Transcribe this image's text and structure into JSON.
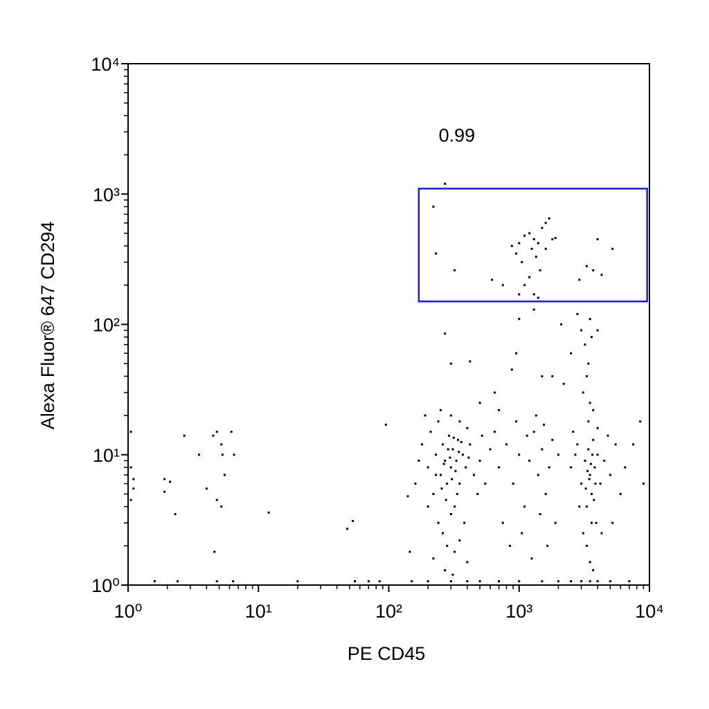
{
  "chart_data": {
    "type": "scatter",
    "xlabel": "PE CD45",
    "ylabel": "Alexa Fluor® 647 CD294",
    "xlog": true,
    "ylog": true,
    "minor_ticks": true,
    "color": "#000000",
    "xlim": [
      1,
      10000
    ],
    "ylim": [
      1,
      10000
    ],
    "xticks": [
      {
        "value": 1,
        "label": "10⁰"
      },
      {
        "value": 10,
        "label": "10¹"
      },
      {
        "value": 100,
        "label": "10²"
      },
      {
        "value": 1000,
        "label": "10³"
      },
      {
        "value": 10000,
        "label": "10⁴"
      }
    ],
    "yticks": [
      {
        "value": 1,
        "label": "10⁰"
      },
      {
        "value": 10,
        "label": "10¹"
      },
      {
        "value": 100,
        "label": "10²"
      },
      {
        "value": 1000,
        "label": "10³"
      },
      {
        "value": 10000,
        "label": "10⁴"
      }
    ],
    "gate": {
      "x": [
        170,
        9600
      ],
      "y": [
        150,
        1100
      ],
      "label": "0.99",
      "color": "#1a1adb"
    },
    "x": [
      1.05,
      1.05,
      1.1,
      1.05,
      1.1,
      1.9,
      2.1,
      1.9,
      2.3,
      2.7,
      3.5,
      4,
      4.5,
      4.8,
      5.2,
      5.3,
      5.5,
      6.2,
      6.5,
      4.8,
      5.2,
      4.6,
      12,
      48,
      53,
      95,
      1.6,
      2.4,
      4.8,
      6.4,
      20,
      55,
      70,
      85,
      270,
      220,
      230,
      320,
      620,
      750,
      880,
      950,
      1000,
      1050,
      1100,
      1200,
      1250,
      1300,
      1350,
      1400,
      1450,
      1500,
      1600,
      1700,
      1800,
      1900,
      1000,
      1100,
      1300,
      1400,
      2900,
      3300,
      3700,
      4000,
      4300,
      5200,
      1200,
      1600,
      1000,
      950,
      1300,
      2100,
      2500,
      2800,
      3000,
      3200,
      3400,
      3500,
      3600,
      3300,
      3100,
      3500,
      4000,
      270,
      300,
      420,
      880,
      650,
      1500,
      1800,
      2200,
      500,
      700,
      180,
      200,
      210,
      220,
      230,
      240,
      250,
      260,
      270,
      280,
      290,
      300,
      310,
      320,
      330,
      340,
      350,
      370,
      390,
      420,
      450,
      500,
      550,
      600,
      240,
      260,
      280,
      300,
      320,
      350,
      380,
      400,
      270,
      310,
      220,
      190,
      250,
      300,
      350,
      400,
      160,
      170,
      200,
      230,
      265,
      285,
      305,
      325,
      345,
      255,
      275,
      295,
      315,
      335,
      360,
      410,
      480,
      520,
      140,
      145,
      700,
      800,
      900,
      1000,
      1100,
      1200,
      1300,
      1400,
      1500,
      1600,
      1700,
      1800,
      1900,
      750,
      850,
      1050,
      1250,
      1450,
      1650,
      950,
      1150,
      1350,
      1550,
      650,
      2000,
      2500,
      2800,
      3000,
      3200,
      3300,
      3400,
      3500,
      3600,
      3700,
      3800,
      3900,
      4000,
      4200,
      4500,
      5000,
      5500,
      6000,
      3100,
      3300,
      3500,
      3600,
      3700,
      3400,
      3700,
      4000,
      2600,
      2900,
      4300,
      6500,
      7500,
      8500,
      9000,
      3450,
      3550,
      3650,
      3350,
      3250,
      3750,
      3850,
      2700,
      4800,
      5200,
      150,
      200,
      300,
      400,
      500,
      700,
      1000,
      1500,
      2000,
      2500,
      3000,
      3500,
      4000,
      5000,
      7000
    ],
    "values": [
      15,
      8,
      5.5,
      4.5,
      6.5,
      6.5,
      6.2,
      5.2,
      3.5,
      14,
      10,
      5.5,
      14,
      15,
      12,
      10,
      7,
      15,
      10,
      4.5,
      4,
      1.8,
      3.6,
      2.7,
      3.1,
      17,
      1.07,
      1.07,
      1.07,
      1.07,
      1.07,
      1.07,
      1.07,
      1.07,
      1200,
      800,
      350,
      260,
      220,
      200,
      400,
      350,
      420,
      300,
      480,
      500,
      380,
      450,
      330,
      420,
      260,
      550,
      380,
      650,
      450,
      460,
      170,
      200,
      170,
      160,
      220,
      280,
      260,
      450,
      240,
      380,
      230,
      600,
      110,
      60,
      130,
      100,
      60,
      120,
      90,
      70,
      50,
      110,
      80,
      40,
      30,
      25,
      90,
      85,
      50,
      52,
      45,
      30,
      40,
      40,
      35,
      25,
      22,
      12,
      8,
      15,
      5,
      10,
      18,
      7,
      12,
      9,
      6,
      14,
      8,
      11,
      4,
      9,
      13,
      6,
      10,
      8,
      12,
      7,
      9,
      6,
      11,
      3,
      2.5,
      2,
      3.5,
      1.8,
      2.2,
      3,
      1.5,
      1.3,
      1.2,
      1.6,
      20,
      22,
      20,
      18,
      16,
      6,
      9,
      4,
      7,
      8.5,
      11,
      6.5,
      7.5,
      10.5,
      5.5,
      4.5,
      9.5,
      13.5,
      5,
      12.5,
      9.5,
      5,
      14,
      4.8,
      1.8,
      8,
      12,
      6,
      10,
      4,
      9,
      15,
      7,
      11,
      5,
      8,
      13,
      3,
      3,
      2,
      2.5,
      1.6,
      3.5,
      2,
      18,
      14,
      20,
      17,
      15,
      10,
      8,
      12,
      6,
      9,
      4,
      11,
      7,
      5,
      13,
      8,
      3,
      10,
      6,
      9,
      7,
      12,
      5,
      2.5,
      2,
      1.5,
      3,
      1.3,
      18,
      22,
      16,
      15,
      4,
      2.5,
      8,
      12,
      18,
      6,
      6.5,
      8.5,
      10,
      7.5,
      5.5,
      4.5,
      6,
      10,
      14,
      3,
      1.07,
      1.07,
      1.07,
      1.07,
      1.07,
      1.07,
      1.07,
      1.07,
      1.07,
      1.07,
      1.07,
      1.07,
      1.07,
      1.07,
      1.07
    ]
  }
}
